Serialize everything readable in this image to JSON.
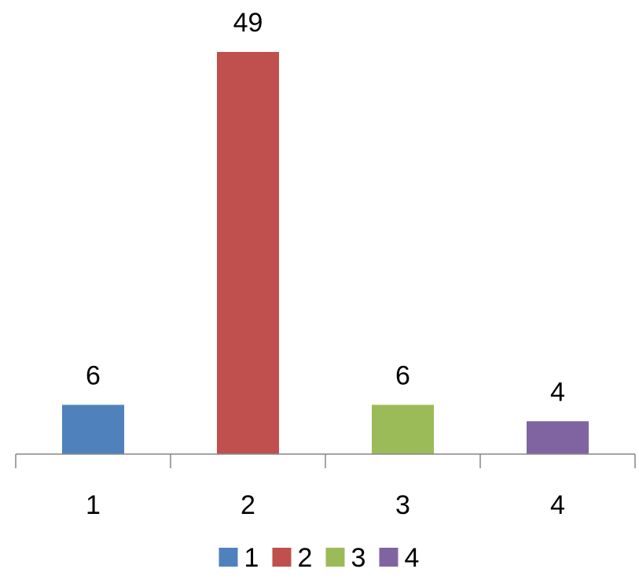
{
  "chart_data": {
    "type": "bar",
    "title": "",
    "xlabel": "",
    "ylabel": "",
    "categories": [
      "1",
      "2",
      "3",
      "4"
    ],
    "values": [
      6,
      49,
      6,
      4
    ],
    "colors": [
      "#4f81bd",
      "#c0504d",
      "#9bbb59",
      "#8064a2"
    ],
    "ylim": [
      0,
      49
    ],
    "grid": false,
    "show_data_labels": true,
    "legend": {
      "position": "bottom",
      "entries": [
        "1",
        "2",
        "3",
        "4"
      ]
    }
  }
}
